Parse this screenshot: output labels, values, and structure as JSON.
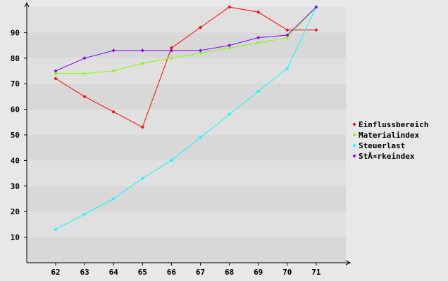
{
  "chart_data": {
    "type": "line",
    "title": "",
    "xlabel": "",
    "ylabel": "",
    "categories": [
      "62",
      "63",
      "64",
      "65",
      "66",
      "67",
      "68",
      "69",
      "70",
      "71"
    ],
    "ylim": [
      0,
      100
    ],
    "yticks": [
      10,
      20,
      30,
      40,
      50,
      60,
      70,
      80,
      90
    ],
    "grid": "horizontal bands",
    "legend_position": "right",
    "series": [
      {
        "name": "Einflussbereich",
        "color": "#ff0000",
        "values": [
          72,
          65,
          59,
          53,
          84,
          92,
          100,
          98,
          91,
          91
        ]
      },
      {
        "name": "Materialindex",
        "color": "#80ff00",
        "values": [
          74,
          74,
          75,
          78,
          80,
          82,
          84,
          86,
          88,
          100
        ]
      },
      {
        "name": "Steuerlast",
        "color": "#00ffff",
        "values": [
          13,
          19,
          25,
          33,
          40,
          49,
          58,
          67,
          76,
          100
        ]
      },
      {
        "name": "StÃ¤rkeindex",
        "color": "#8000ff",
        "values": [
          75,
          80,
          83,
          83,
          83,
          83,
          85,
          88,
          89,
          100
        ]
      }
    ]
  }
}
